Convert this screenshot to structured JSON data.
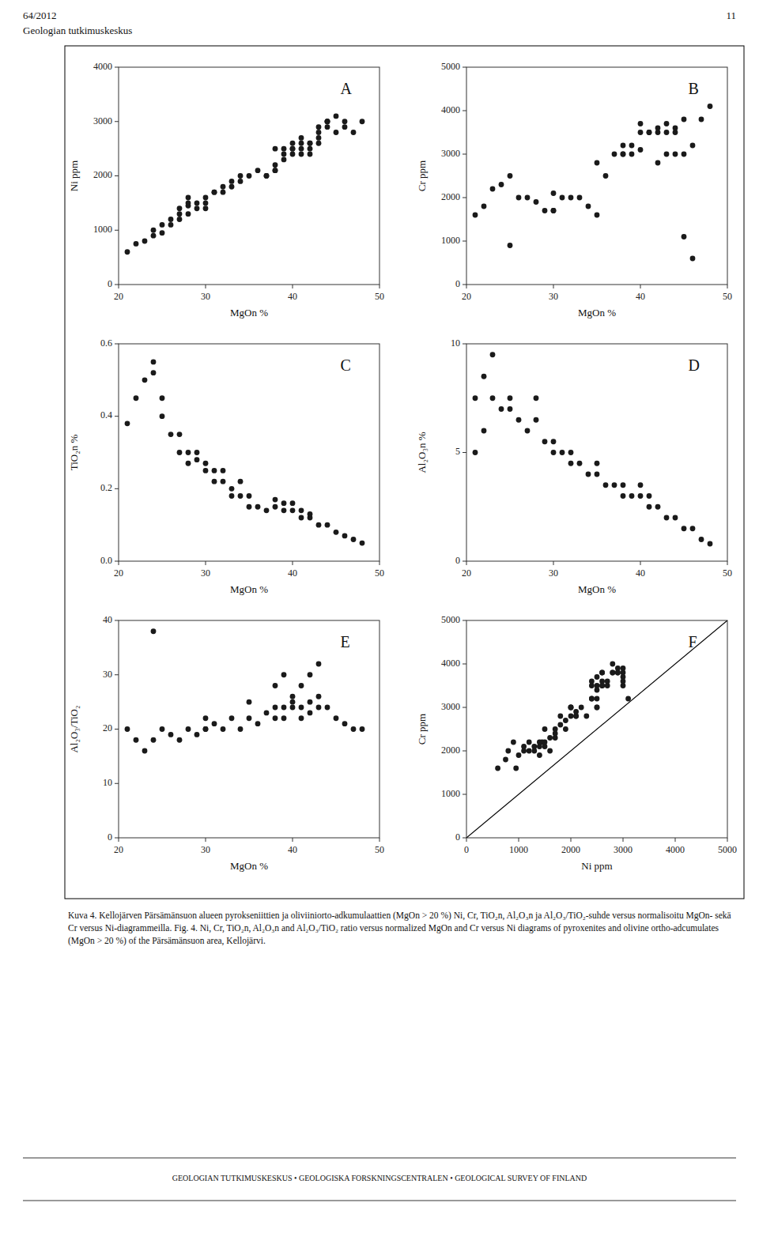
{
  "header_left": "64/2012",
  "header_right": "11",
  "subheader": "Geologian tutkimuskeskus",
  "caption": "Kuva 4. Kellojärven Pärsämänsuon alueen pyrokseniittien ja oliviiniorto-adkumulaattien (MgOn > 20 %) Ni, Cr, TiO₂n, Al₂O₃n ja Al₂O₃/TiO₂-suhde versus normalisoitu MgOn- sekä Cr versus Ni-diagrammeilla. Fig. 4. Ni, Cr, TiO₂n, Al₂O₃n and Al₂O₃/TiO₂ ratio versus normalized MgOn and Cr versus Ni diagrams of pyroxenites and olivine ortho-adcumulates (MgOn > 20 %) of the Pärsämänsuon area, Kellojärvi.",
  "footer": "GEOLOGIAN TUTKIMUSKESKUS • GEOLOGISKA FORSKNINGSCENTRALEN • GEOLOGICAL SURVEY OF FINLAND",
  "chart_data": [
    {
      "type": "scatter",
      "title": "A",
      "x_label": "MgOn %",
      "y_label": "Ni ppm",
      "xlim": [
        20,
        50
      ],
      "ylim": [
        0,
        4000
      ],
      "xticks": [
        20,
        30,
        40,
        50
      ],
      "yticks": [
        0,
        1000,
        2000,
        3000,
        4000
      ],
      "grid": false,
      "series": [
        {
          "type": "scatter",
          "color": "#1a1a1a",
          "x": [
            21,
            22,
            23,
            24,
            24,
            25,
            25,
            26,
            26,
            27,
            27,
            27,
            28,
            28,
            28,
            28,
            29,
            29,
            30,
            30,
            30,
            31,
            31,
            32,
            32,
            33,
            33,
            34,
            34,
            35,
            36,
            37,
            37,
            38,
            38,
            38,
            38,
            39,
            39,
            39,
            40,
            40,
            40,
            40,
            41,
            41,
            41,
            41,
            42,
            42,
            42,
            42,
            43,
            43,
            43,
            43,
            44,
            44,
            44,
            44,
            45,
            45,
            46,
            46,
            47,
            48
          ],
          "values": [
            600,
            750,
            800,
            900,
            1000,
            950,
            1100,
            1100,
            1200,
            1200,
            1300,
            1400,
            1300,
            1450,
            1500,
            1600,
            1400,
            1500,
            1400,
            1500,
            1600,
            1700,
            1700,
            1700,
            1800,
            1800,
            1900,
            1900,
            2000,
            2000,
            2100,
            2000,
            2000,
            2100,
            2100,
            2200,
            2500,
            2300,
            2400,
            2500,
            2400,
            2500,
            2500,
            2600,
            2400,
            2500,
            2600,
            2700,
            2400,
            2500,
            2600,
            2600,
            2700,
            2600,
            2800,
            2900,
            2900,
            3000,
            3000,
            3000,
            2800,
            3100,
            2900,
            3000,
            2800,
            3000
          ]
        }
      ]
    },
    {
      "type": "scatter",
      "title": "B",
      "x_label": "MgOn %",
      "y_label": "Cr ppm",
      "xlim": [
        20,
        50
      ],
      "ylim": [
        0,
        5000
      ],
      "xticks": [
        20,
        30,
        40,
        50
      ],
      "yticks": [
        0,
        1000,
        2000,
        3000,
        4000,
        5000
      ],
      "grid": false,
      "series": [
        {
          "type": "scatter",
          "color": "#1a1a1a",
          "x": [
            21,
            22,
            23,
            24,
            25,
            26,
            27,
            28,
            29,
            30,
            30,
            31,
            32,
            33,
            34,
            35,
            36,
            37,
            38,
            38,
            39,
            39,
            40,
            40,
            41,
            41,
            42,
            42,
            43,
            43,
            44,
            44,
            45,
            45,
            46,
            47,
            48,
            25,
            30,
            35,
            38,
            40,
            42,
            43,
            44,
            45,
            46
          ],
          "values": [
            1600,
            1800,
            2200,
            2300,
            900,
            2000,
            2000,
            1900,
            1700,
            1700,
            2100,
            2000,
            2000,
            2000,
            1800,
            1600,
            2500,
            3000,
            3000,
            3200,
            3000,
            3200,
            3500,
            3700,
            3500,
            3500,
            3500,
            3600,
            3500,
            3700,
            3500,
            3600,
            3000,
            3800,
            3200,
            3800,
            4100,
            2500,
            1700,
            2800,
            3000,
            3100,
            2800,
            3000,
            3000,
            1100,
            600
          ]
        }
      ]
    },
    {
      "type": "scatter",
      "title": "C",
      "x_label": "MgOn %",
      "y_label": "TiO₂n %",
      "xlim": [
        20,
        50
      ],
      "ylim": [
        0.0,
        0.6
      ],
      "xticks": [
        20,
        30,
        40,
        50
      ],
      "yticks": [
        {
          "value": 0.0,
          "label": "0.0"
        },
        0.2,
        0.4,
        0.6
      ],
      "grid": false,
      "series": [
        {
          "type": "scatter",
          "color": "#1a1a1a",
          "x": [
            21,
            22,
            23,
            24,
            24,
            25,
            25,
            26,
            27,
            27,
            28,
            28,
            29,
            29,
            30,
            30,
            31,
            31,
            32,
            32,
            33,
            33,
            34,
            34,
            35,
            35,
            36,
            37,
            38,
            38,
            39,
            39,
            40,
            40,
            41,
            41,
            42,
            42,
            43,
            44,
            45,
            46,
            47,
            48
          ],
          "values": [
            0.38,
            0.45,
            0.5,
            0.52,
            0.55,
            0.4,
            0.45,
            0.35,
            0.3,
            0.35,
            0.27,
            0.3,
            0.28,
            0.3,
            0.25,
            0.27,
            0.22,
            0.25,
            0.22,
            0.25,
            0.18,
            0.2,
            0.18,
            0.22,
            0.15,
            0.18,
            0.15,
            0.14,
            0.15,
            0.17,
            0.14,
            0.16,
            0.14,
            0.16,
            0.12,
            0.14,
            0.12,
            0.13,
            0.1,
            0.1,
            0.08,
            0.07,
            0.06,
            0.05
          ]
        }
      ]
    },
    {
      "type": "scatter",
      "title": "D",
      "x_label": "MgOn %",
      "y_label": "Al₂O₃n %",
      "xlim": [
        20,
        50
      ],
      "ylim": [
        0,
        10
      ],
      "xticks": [
        20,
        30,
        40,
        50
      ],
      "yticks": [
        0,
        5,
        10
      ],
      "grid": false,
      "series": [
        {
          "type": "scatter",
          "color": "#1a1a1a",
          "x": [
            21,
            22,
            23,
            24,
            25,
            25,
            26,
            27,
            28,
            28,
            29,
            30,
            30,
            31,
            32,
            32,
            33,
            34,
            35,
            35,
            36,
            37,
            38,
            38,
            39,
            40,
            40,
            41,
            41,
            42,
            43,
            44,
            45,
            46,
            47,
            48,
            21,
            22,
            23
          ],
          "values": [
            7.5,
            8.5,
            7.5,
            7.0,
            7.5,
            7.0,
            6.5,
            6.0,
            6.5,
            7.5,
            5.5,
            5.0,
            5.5,
            5.0,
            4.5,
            5.0,
            4.5,
            4.0,
            4.0,
            4.5,
            3.5,
            3.5,
            3.0,
            3.5,
            3.0,
            3.0,
            3.5,
            2.5,
            3.0,
            2.5,
            2.0,
            2.0,
            1.5,
            1.5,
            1.0,
            0.8,
            5.0,
            6.0,
            9.5
          ]
        }
      ]
    },
    {
      "type": "scatter",
      "title": "E",
      "x_label": "MgOn %",
      "y_label": "Al₂O₃/TiO₂",
      "xlim": [
        20,
        50
      ],
      "ylim": [
        0,
        40
      ],
      "xticks": [
        20,
        30,
        40,
        50
      ],
      "yticks": [
        0,
        10,
        20,
        30,
        40
      ],
      "grid": false,
      "series": [
        {
          "type": "scatter",
          "color": "#1a1a1a",
          "x": [
            21,
            22,
            23,
            24,
            25,
            26,
            27,
            28,
            29,
            30,
            30,
            31,
            32,
            33,
            34,
            35,
            36,
            37,
            38,
            38,
            39,
            39,
            40,
            40,
            41,
            41,
            42,
            42,
            43,
            43,
            44,
            45,
            46,
            47,
            48,
            24,
            30,
            35,
            38,
            39,
            40,
            41,
            42,
            43
          ],
          "values": [
            20,
            18,
            16,
            18,
            20,
            19,
            18,
            20,
            19,
            20,
            22,
            21,
            20,
            22,
            20,
            22,
            21,
            23,
            22,
            24,
            22,
            24,
            24,
            25,
            22,
            24,
            23,
            25,
            24,
            26,
            24,
            22,
            21,
            20,
            20,
            38,
            20,
            25,
            28,
            30,
            26,
            28,
            30,
            32
          ]
        }
      ]
    },
    {
      "type": "scatter",
      "title": "F",
      "x_label": "Ni ppm",
      "y_label": "Cr ppm",
      "xlim": [
        0,
        5000
      ],
      "ylim": [
        0,
        5000
      ],
      "xticks": [
        0,
        1000,
        2000,
        3000,
        4000,
        5000
      ],
      "yticks": [
        0,
        1000,
        2000,
        3000,
        4000,
        5000
      ],
      "grid": false,
      "series": [
        {
          "type": "scatter",
          "color": "#1a1a1a",
          "x": [
            600,
            750,
            800,
            900,
            1000,
            950,
            1100,
            1100,
            1200,
            1200,
            1300,
            1400,
            1300,
            1450,
            1500,
            1600,
            1400,
            1500,
            1400,
            1500,
            1600,
            1700,
            1700,
            1700,
            1800,
            1800,
            1900,
            1900,
            2000,
            2000,
            2100,
            2000,
            2000,
            2100,
            2100,
            2200,
            2500,
            2300,
            2400,
            2500,
            2400,
            2500,
            2500,
            2600,
            2400,
            2500,
            2600,
            2700,
            2400,
            2500,
            2600,
            2600,
            2700,
            2600,
            2800,
            2900,
            2900,
            3000,
            3000,
            3000,
            2800,
            3100,
            2900,
            3000,
            2800,
            3000
          ],
          "values": [
            1600,
            1800,
            2000,
            2200,
            1900,
            1600,
            2000,
            2100,
            2200,
            2000,
            2100,
            1900,
            2000,
            2200,
            2500,
            2000,
            2100,
            2200,
            2200,
            2100,
            2300,
            2300,
            2500,
            2400,
            2600,
            2800,
            2700,
            2500,
            3000,
            2800,
            2800,
            3000,
            3000,
            2800,
            2900,
            3000,
            3000,
            2800,
            3200,
            3000,
            3200,
            3200,
            3400,
            3600,
            3500,
            3500,
            3500,
            3500,
            3600,
            3700,
            3800,
            3500,
            3600,
            3800,
            3800,
            3800,
            3900,
            3800,
            3700,
            3500,
            4000,
            3200,
            3800,
            3900,
            3800,
            3600
          ]
        },
        {
          "type": "line",
          "color": "#000000",
          "x": [
            0,
            5000
          ],
          "values": [
            0,
            5000
          ]
        }
      ]
    }
  ]
}
